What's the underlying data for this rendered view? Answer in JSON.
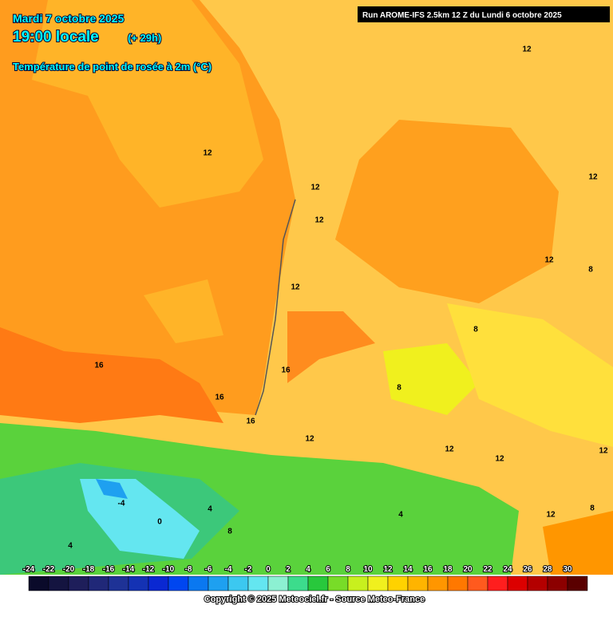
{
  "header": {
    "date": "Mardi 7 octobre 2025",
    "time": "19:00 locale",
    "lead": "(+ 29h)",
    "parameter": "Température de point de rosée à 2m (°C)",
    "run": "Run AROME-IFS 2.5km 12 Z du Lundi 6 octobre 2025"
  },
  "map": {
    "contour_labels": [
      12,
      12,
      12,
      12,
      16,
      16,
      16,
      16,
      12,
      8,
      8,
      12,
      12,
      12,
      8,
      12,
      12,
      12,
      8,
      12,
      -4,
      0,
      4,
      8,
      4,
      4
    ]
  },
  "legend": {
    "ticks": [
      -24,
      -22,
      -20,
      -18,
      -16,
      -14,
      -12,
      -10,
      -8,
      -6,
      -4,
      -2,
      0,
      2,
      4,
      6,
      8,
      10,
      12,
      14,
      16,
      18,
      20,
      22,
      24,
      26,
      28,
      30
    ],
    "colors": [
      "#0a0a2a",
      "#141440",
      "#1e1e5a",
      "#202878",
      "#1e3296",
      "#1432b4",
      "#0a28d2",
      "#0046f0",
      "#0a78f0",
      "#1ea0f0",
      "#3cc8f0",
      "#64e6f0",
      "#8cf0d2",
      "#3cdc8c",
      "#28c83c",
      "#78dc28",
      "#c8f01e",
      "#f0f01e",
      "#ffd200",
      "#ffb400",
      "#ff9600",
      "#ff7800",
      "#ff5a1e",
      "#ff1e1e",
      "#dc0000",
      "#b40000",
      "#8c0000",
      "#5a0000"
    ]
  },
  "footer": {
    "copyright": "Copyright © 2025 Meteociel.fr - Source Meteo-France"
  }
}
